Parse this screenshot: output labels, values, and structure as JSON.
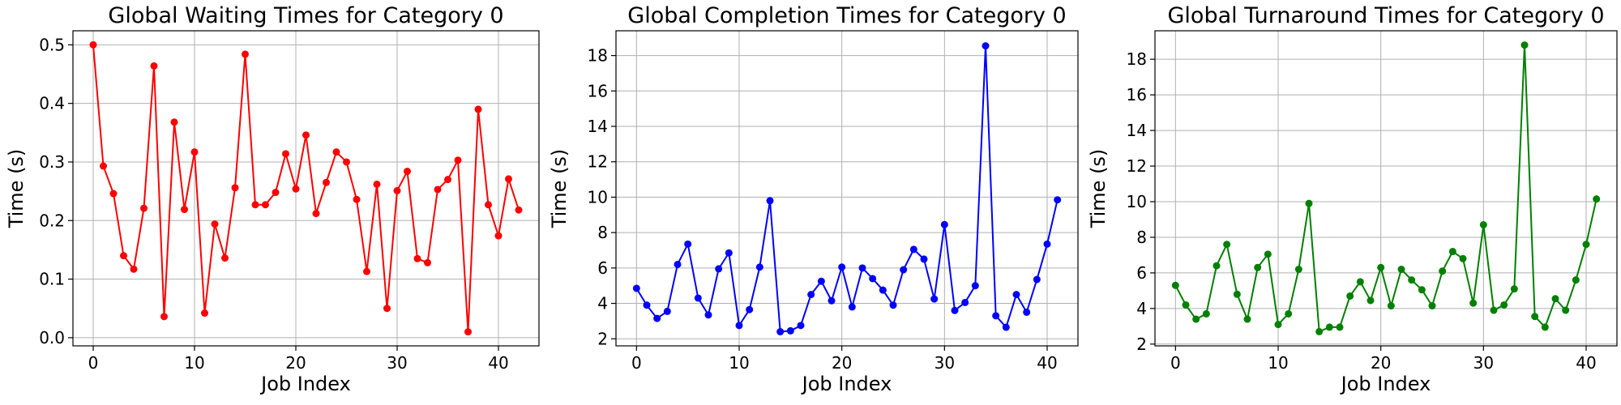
{
  "chart_data": [
    {
      "type": "line",
      "title": "Global Waiting Times for Category 0",
      "xlabel": "Job Index",
      "ylabel": "Time (s)",
      "xlim": [
        -2,
        44
      ],
      "ylim": [
        -0.014,
        0.524
      ],
      "xticks": [
        0,
        10,
        20,
        30,
        40
      ],
      "yticks": [
        0.0,
        0.1,
        0.2,
        0.3,
        0.4,
        0.5
      ],
      "ytick_labels": [
        "0.0",
        "0.1",
        "0.2",
        "0.3",
        "0.4",
        "0.5"
      ],
      "grid": true,
      "color": "#ff0000",
      "series": [
        {
          "values": [
            0.5,
            0.293,
            0.246,
            0.14,
            0.117,
            0.221,
            0.464,
            0.036,
            0.368,
            0.219,
            0.317,
            0.042,
            0.194,
            0.136,
            0.256,
            0.484,
            0.227,
            0.227,
            0.248,
            0.314,
            0.254,
            0.346,
            0.212,
            0.265,
            0.317,
            0.3,
            0.236,
            0.113,
            0.262,
            0.05,
            0.251,
            0.284,
            0.135,
            0.128,
            0.253,
            0.27,
            0.303,
            0.01,
            0.39,
            0.227,
            0.174,
            0.271,
            0.218
          ]
        }
      ]
    },
    {
      "type": "line",
      "title": "Global Completion Times for Category 0",
      "xlabel": "Job Index",
      "ylabel": "Time (s)",
      "xlim": [
        -2,
        43
      ],
      "ylim": [
        1.6,
        19.4
      ],
      "xticks": [
        0,
        10,
        20,
        30,
        40
      ],
      "yticks": [
        2,
        4,
        6,
        8,
        10,
        12,
        14,
        16,
        18
      ],
      "ytick_labels": [
        "2",
        "4",
        "6",
        "8",
        "10",
        "12",
        "14",
        "16",
        "18"
      ],
      "grid": true,
      "color": "#0000ff",
      "series": [
        {
          "values": [
            4.85,
            3.9,
            3.15,
            3.55,
            6.2,
            7.35,
            4.3,
            3.35,
            5.95,
            6.85,
            2.75,
            3.65,
            6.05,
            9.8,
            2.4,
            2.45,
            2.75,
            4.5,
            5.25,
            4.15,
            6.05,
            3.8,
            6.0,
            5.4,
            4.75,
            3.9,
            5.9,
            7.05,
            6.5,
            4.25,
            8.45,
            3.6,
            4.05,
            5.0,
            18.55,
            3.3,
            2.65,
            4.5,
            3.5,
            5.35,
            7.35,
            9.85
          ]
        }
      ]
    },
    {
      "type": "line",
      "title": "Global Turnaround Times for Category 0",
      "xlabel": "Job Index",
      "ylabel": "Time (s)",
      "xlim": [
        -2,
        43
      ],
      "ylim": [
        1.9,
        19.6
      ],
      "xticks": [
        0,
        10,
        20,
        30,
        40
      ],
      "yticks": [
        2,
        4,
        6,
        8,
        10,
        12,
        14,
        16,
        18
      ],
      "ytick_labels": [
        "2",
        "4",
        "6",
        "8",
        "10",
        "12",
        "14",
        "16",
        "18"
      ],
      "grid": true,
      "color": "#008000",
      "series": [
        {
          "values": [
            5.3,
            4.2,
            3.4,
            3.7,
            6.4,
            7.6,
            4.8,
            3.4,
            6.3,
            7.05,
            3.1,
            3.7,
            6.2,
            9.9,
            2.7,
            2.95,
            2.95,
            4.7,
            5.5,
            4.45,
            6.3,
            4.15,
            6.2,
            5.6,
            5.05,
            4.15,
            6.1,
            7.2,
            6.8,
            4.3,
            8.7,
            3.9,
            4.2,
            5.1,
            18.8,
            3.55,
            2.95,
            4.55,
            3.9,
            5.6,
            7.6,
            10.15
          ]
        }
      ]
    }
  ]
}
